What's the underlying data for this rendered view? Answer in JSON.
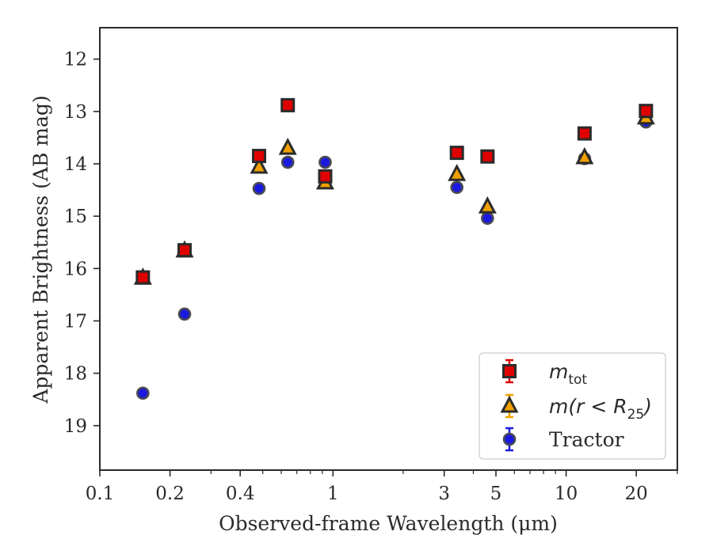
{
  "chart_data": {
    "type": "scatter",
    "xlabel": "Observed-frame Wavelength (μm)",
    "ylabel": "Apparent Brightness (AB mag)",
    "xscale": "log",
    "xlim": [
      0.1,
      30
    ],
    "ylim": [
      19.85,
      11.4
    ],
    "y_inverted": true,
    "x_ticks": [
      0.1,
      0.2,
      0.4,
      1,
      3,
      5,
      10,
      20
    ],
    "x_tick_labels": [
      "0.1",
      "0.2",
      "0.4",
      "1",
      "3",
      "5",
      "10",
      "20"
    ],
    "y_ticks": [
      12,
      13,
      14,
      15,
      16,
      17,
      18,
      19
    ],
    "y_tick_labels": [
      "12",
      "13",
      "14",
      "15",
      "16",
      "17",
      "18",
      "19"
    ],
    "grid": false,
    "legend_position": "lower-right",
    "series": [
      {
        "name": "m_tot",
        "label_main": "m",
        "label_sub": "tot",
        "marker": "square",
        "color": "#e00000",
        "points": [
          {
            "x": 0.153,
            "y": 16.17
          },
          {
            "x": 0.231,
            "y": 15.65
          },
          {
            "x": 0.482,
            "y": 13.85
          },
          {
            "x": 0.64,
            "y": 12.88
          },
          {
            "x": 0.926,
            "y": 14.24
          },
          {
            "x": 3.4,
            "y": 13.79
          },
          {
            "x": 4.6,
            "y": 13.86
          },
          {
            "x": 12.0,
            "y": 13.42
          },
          {
            "x": 22.0,
            "y": 12.99
          }
        ]
      },
      {
        "name": "m(r < R25)",
        "label_main": "m(r < R",
        "label_sub": "25",
        "label_end": ")",
        "marker": "triangle",
        "color": "#f0a000",
        "points": [
          {
            "x": 0.153,
            "y": 16.18
          },
          {
            "x": 0.231,
            "y": 15.66
          },
          {
            "x": 0.482,
            "y": 14.06
          },
          {
            "x": 0.64,
            "y": 13.7
          },
          {
            "x": 0.926,
            "y": 14.36
          },
          {
            "x": 3.4,
            "y": 14.2
          },
          {
            "x": 4.6,
            "y": 14.82
          },
          {
            "x": 12.0,
            "y": 13.88
          },
          {
            "x": 22.0,
            "y": 13.12
          }
        ]
      },
      {
        "name": "Tractor",
        "marker": "circle",
        "color": "#1a1adf",
        "points": [
          {
            "x": 0.153,
            "y": 18.38
          },
          {
            "x": 0.231,
            "y": 16.87
          },
          {
            "x": 0.482,
            "y": 14.47
          },
          {
            "x": 0.64,
            "y": 13.97
          },
          {
            "x": 0.926,
            "y": 13.97
          },
          {
            "x": 3.4,
            "y": 14.45
          },
          {
            "x": 4.6,
            "y": 15.04
          },
          {
            "x": 12.0,
            "y": 13.9
          },
          {
            "x": 22.0,
            "y": 13.2
          }
        ]
      }
    ]
  }
}
